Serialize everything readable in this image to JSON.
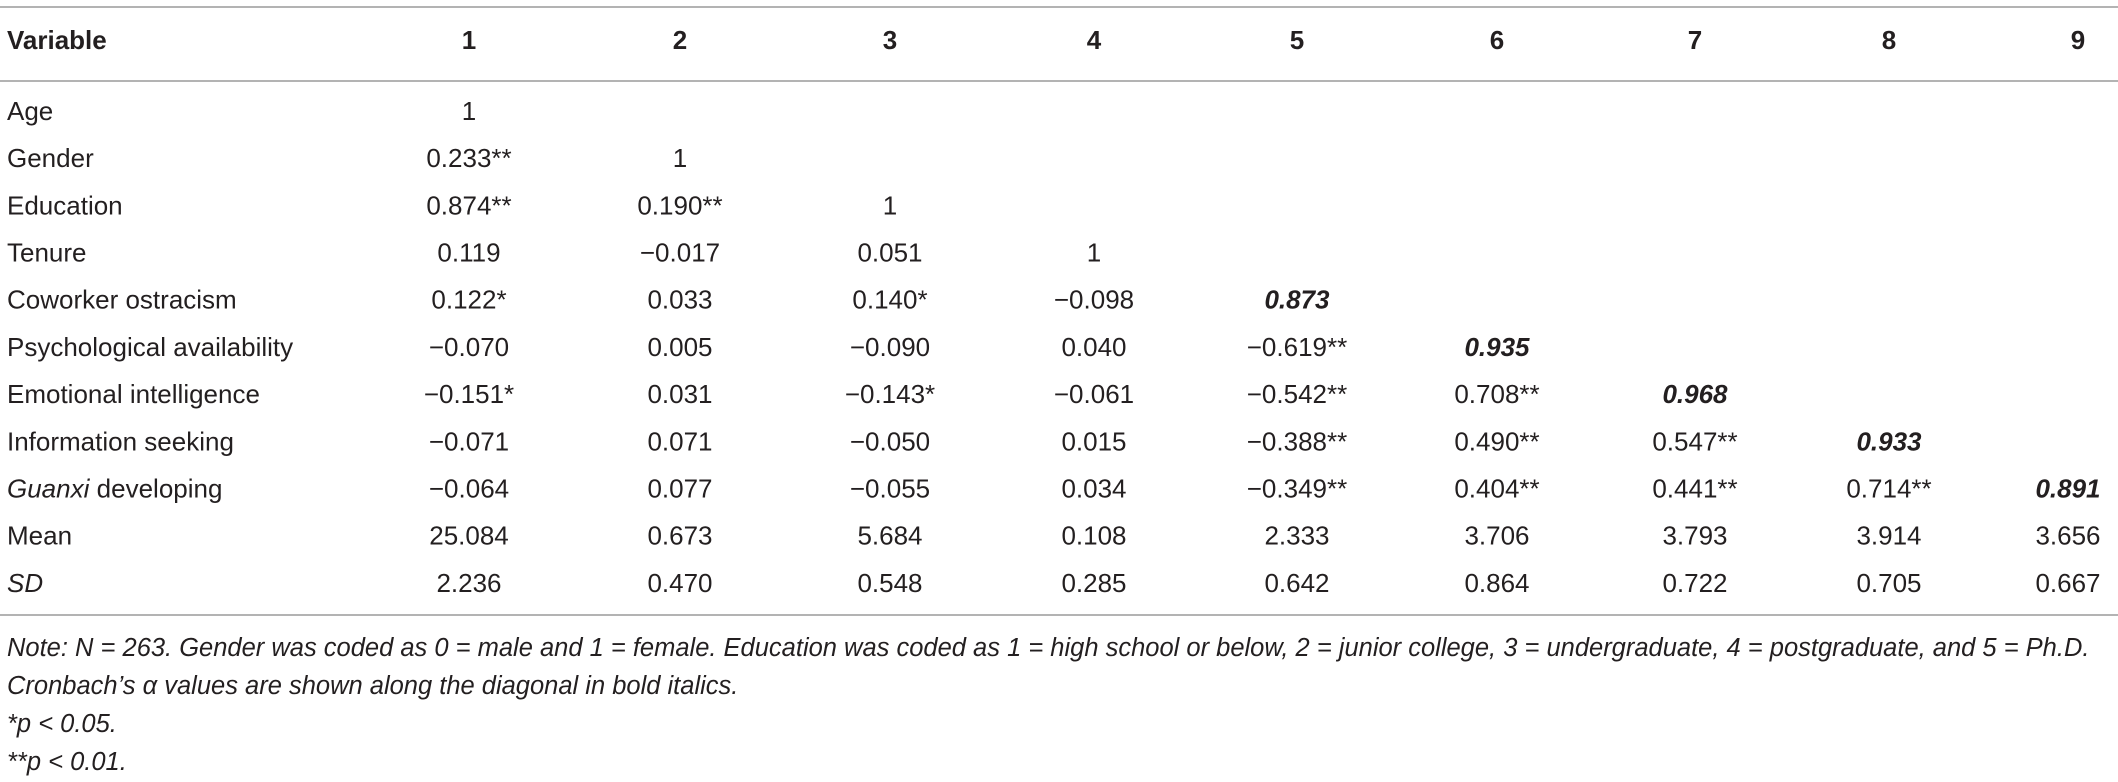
{
  "table": {
    "header": [
      "Variable",
      "1",
      "2",
      "3",
      "4",
      "5",
      "6",
      "7",
      "8",
      "9"
    ],
    "rows": [
      {
        "label": "Age",
        "cells": [
          "1",
          null,
          null,
          null,
          null,
          null,
          null,
          null,
          null
        ]
      },
      {
        "label": "Gender",
        "cells": [
          "0.233**",
          "1",
          null,
          null,
          null,
          null,
          null,
          null,
          null
        ]
      },
      {
        "label": "Education",
        "cells": [
          "0.874**",
          "0.190**",
          "1",
          null,
          null,
          null,
          null,
          null,
          null
        ]
      },
      {
        "label": "Tenure",
        "cells": [
          "0.119",
          "−0.017",
          "0.051",
          "1",
          null,
          null,
          null,
          null,
          null
        ]
      },
      {
        "label": "Coworker ostracism",
        "cells": [
          "0.122*",
          "0.033",
          "0.140*",
          "−0.098",
          {
            "text": "0.873",
            "bold_italic": true
          },
          null,
          null,
          null,
          null
        ]
      },
      {
        "label": "Psychological availability",
        "cells": [
          "−0.070",
          "0.005",
          "−0.090",
          "0.040",
          "−0.619**",
          {
            "text": "0.935",
            "bold_italic": true
          },
          null,
          null,
          null
        ]
      },
      {
        "label": "Emotional intelligence",
        "cells": [
          "−0.151*",
          "0.031",
          "−0.143*",
          "−0.061",
          "−0.542**",
          "0.708**",
          {
            "text": "0.968",
            "bold_italic": true
          },
          null,
          null
        ]
      },
      {
        "label": "Information seeking",
        "cells": [
          "−0.071",
          "0.071",
          "−0.050",
          "0.015",
          "−0.388**",
          "0.490**",
          "0.547**",
          {
            "text": "0.933",
            "bold_italic": true
          },
          null
        ]
      },
      {
        "label": [
          {
            "text": "Guanxi",
            "italic": true
          },
          {
            "text": "developing"
          }
        ],
        "cells": [
          "−0.064",
          "0.077",
          "−0.055",
          "0.034",
          "−0.349**",
          "0.404**",
          "0.441**",
          "0.714**",
          {
            "text": "0.891",
            "bold_italic": true
          }
        ]
      },
      {
        "label": "Mean",
        "cells": [
          "25.084",
          "0.673",
          "5.684",
          "0.108",
          "2.333",
          "3.706",
          "3.793",
          "3.914",
          "3.656"
        ]
      },
      {
        "label": [
          {
            "text": "SD",
            "italic": true
          }
        ],
        "cells": [
          "2.236",
          "0.470",
          "0.548",
          "0.285",
          "0.642",
          "0.864",
          "0.722",
          "0.705",
          "0.667"
        ]
      }
    ],
    "notes": [
      "Note: N = 263. Gender was coded as 0 = male and 1 = female. Education was coded as 1 = high school or below, 2 = junior college, 3 = undergraduate, 4 = postgraduate, and 5 = Ph.D. Cronbach’s α values are shown along the diagonal in bold italics.",
      "*p < 0.05.",
      "**p < 0.01."
    ]
  }
}
